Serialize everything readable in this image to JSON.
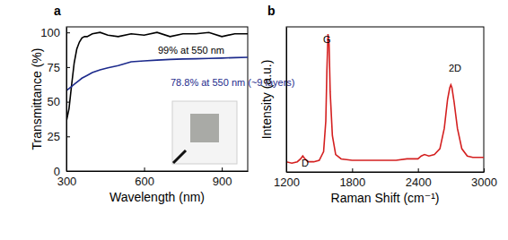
{
  "chart_data": [
    {
      "type": "line",
      "title": "a",
      "x_label": "Wavelength (nm)",
      "y_label": "Transmittance (%)",
      "x": [
        300,
        310,
        320,
        330,
        340,
        350,
        360,
        370,
        380,
        400,
        430,
        460,
        500,
        550,
        600,
        650,
        700,
        750,
        800,
        850,
        900,
        950,
        1000
      ],
      "series": [
        {
          "color": "#000000",
          "values": [
            36,
            45,
            62,
            78,
            88,
            93,
            96,
            97,
            97,
            99,
            100,
            98,
            97,
            99,
            98,
            100,
            97,
            99,
            99,
            100,
            97,
            99,
            99
          ]
        },
        {
          "color": "#1c2a8c",
          "values": [
            58,
            59.5,
            61,
            62.5,
            64,
            65.5,
            67,
            68,
            69,
            71,
            73,
            74.5,
            76,
            78.8,
            79.5,
            80,
            80.5,
            80.8,
            81,
            81.2,
            81.5,
            81.8,
            82
          ]
        }
      ],
      "annotations": [
        "99% at 550 nm",
        "78.8% at 550 nm (~9 layers)"
      ],
      "xlim": [
        300,
        1000
      ],
      "ylim": [
        0,
        104
      ],
      "xticks": [
        300,
        600,
        900
      ],
      "yticks": [
        0,
        25,
        50,
        75,
        100
      ]
    },
    {
      "type": "line",
      "title": "b",
      "x_label": "Raman Shift (cm⁻¹)",
      "y_label": "Intensity (a.u.)",
      "x": [
        1200,
        1250,
        1300,
        1330,
        1350,
        1370,
        1400,
        1450,
        1500,
        1540,
        1560,
        1570,
        1580,
        1590,
        1600,
        1620,
        1650,
        1700,
        1800,
        1900,
        2000,
        2100,
        2200,
        2300,
        2400,
        2430,
        2460,
        2500,
        2550,
        2600,
        2640,
        2670,
        2690,
        2700,
        2710,
        2730,
        2760,
        2800,
        2850,
        2900,
        2950,
        3000
      ],
      "series": [
        {
          "color": "#d42020",
          "values": [
            7,
            6,
            7,
            9,
            11,
            9,
            7,
            7,
            8,
            14,
            35,
            70,
            95,
            88,
            55,
            25,
            12,
            9,
            8,
            8,
            8,
            8,
            8,
            9,
            9,
            11,
            12,
            11,
            12,
            16,
            30,
            50,
            58,
            60,
            58,
            48,
            30,
            16,
            11,
            10,
            10,
            10
          ]
        }
      ],
      "annotations": [
        "D",
        "G",
        "2D"
      ],
      "xlim": [
        1200,
        3000
      ],
      "ylim": [
        0,
        100
      ],
      "xticks": [
        1200,
        1800,
        2400,
        3000
      ],
      "tick_labels": "x"
    }
  ]
}
